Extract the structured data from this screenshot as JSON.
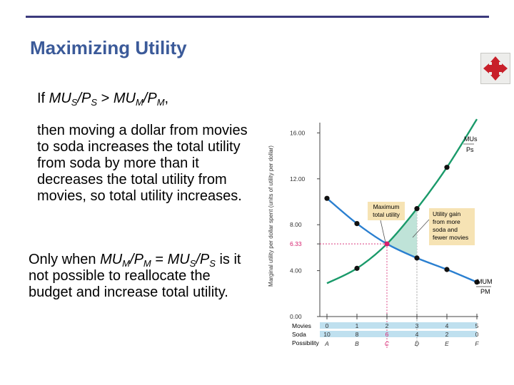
{
  "slide": {
    "title": "Maximizing Utility",
    "bullet1": {
      "line1": {
        "t1": "If ",
        "mu_s": "MU",
        "s1": "S",
        "slash1": "/P",
        "s2": "S",
        "gt": " > ",
        "mu_m": "MU",
        "m1": "M",
        "slash2": "/P",
        "m2": "M",
        "comma": ","
      },
      "para": "then moving a dollar from movies to soda increases the total utility from soda by more than it decreases the total utility from movies, so total utility increases."
    },
    "bullet2": {
      "a": "Only when ",
      "mu1": "MU",
      "m1": "M",
      "p1": "/P",
      "m2": "M",
      "eq": " = ",
      "mu2": "MU",
      "s1": "S",
      "p2": "/P",
      "s2": "S",
      "rest": " is it not possible to reallocate the budget and increase total utility."
    }
  },
  "nav": {
    "icon": "move-arrows-icon"
  },
  "chart_data": {
    "type": "line",
    "ylabel": "Marginal utility per dollar spent (units of utility per dollar)",
    "y_ticks": [
      "16.00",
      "12.00",
      "8.00",
      "6.33",
      "4.00",
      "0.00"
    ],
    "ylim": [
      0,
      17
    ],
    "x_categories": [
      "A",
      "B",
      "C",
      "D",
      "E",
      "F"
    ],
    "row_labels": {
      "movies": "Movies",
      "soda": "Soda",
      "possibility": "Possibility"
    },
    "movies": [
      "0",
      "1",
      "2",
      "3",
      "4",
      "5"
    ],
    "soda": [
      "10",
      "8",
      "6",
      "4",
      "2",
      "0"
    ],
    "series": [
      {
        "name": "MU_S / P_S",
        "label_top": "MUs",
        "label_bottom": "Ps",
        "color": "#1a9a6a",
        "values": [
          2.9,
          4.2,
          6.33,
          9.4,
          13.0,
          17.2
        ]
      },
      {
        "name": "MU_M / P_M",
        "label_top": "MUM",
        "label_bottom": "PM",
        "color": "#2a7fd0",
        "values": [
          10.3,
          8.1,
          6.33,
          5.1,
          4.1,
          3.0
        ]
      }
    ],
    "markers": {
      "soda": [
        4.2,
        9.4,
        13.0
      ],
      "movies": [
        5.1,
        4.1,
        3.0,
        10.3,
        8.1
      ]
    },
    "equilibrium": {
      "x": "C",
      "y": 6.33
    },
    "annotations": {
      "max_label_1": "Maximum",
      "max_label_2": "total utility",
      "gain_1": "Utility gain",
      "gain_2": "from more",
      "gain_3": "soda and",
      "gain_4": "fewer movies"
    },
    "colors": {
      "soda_line": "#1a9a6a",
      "movies_line": "#2a7fd0",
      "gain_fill": "#b8e0d4",
      "annotation_bg": "#f6e3b4",
      "equilibrium": "#d6206e",
      "row_bar": "#bfe0ef"
    }
  }
}
